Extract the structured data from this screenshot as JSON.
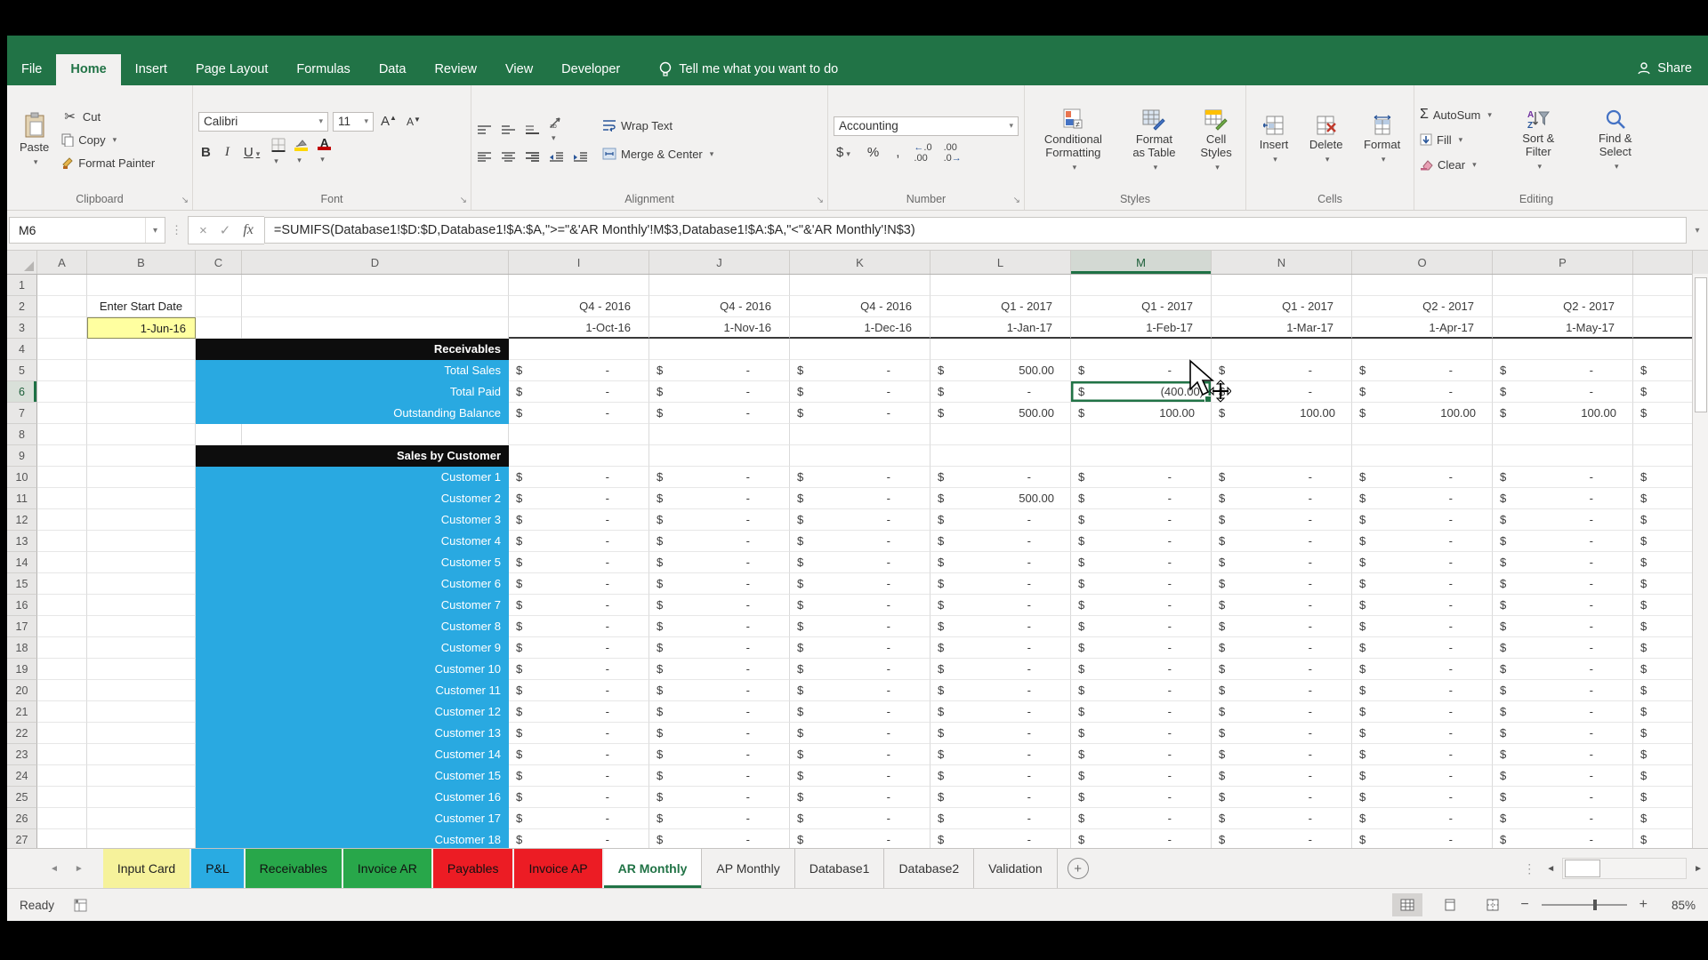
{
  "colors": {
    "accent": "#217346",
    "band_blue": "#29a9e1",
    "band_black": "#0d0d0d",
    "cell_yellow": "#ffffa0",
    "tab_yellow": "#f6f29b",
    "tab_blue": "#29abe2",
    "tab_green": "#28a74a",
    "tab_red": "#ec1c24"
  },
  "ribbon": {
    "tabs": [
      {
        "label": "File"
      },
      {
        "label": "Home",
        "active": true
      },
      {
        "label": "Insert"
      },
      {
        "label": "Page Layout"
      },
      {
        "label": "Formulas"
      },
      {
        "label": "Data"
      },
      {
        "label": "Review"
      },
      {
        "label": "View"
      },
      {
        "label": "Developer"
      }
    ],
    "tell_me": "Tell me what you want to do",
    "share_label": "Share",
    "clipboard": {
      "group": "Clipboard",
      "paste": "Paste",
      "cut": "Cut",
      "copy": "Copy",
      "format_painter": "Format Painter"
    },
    "font": {
      "group": "Font",
      "family": "Calibri",
      "size": "11"
    },
    "alignment": {
      "group": "Alignment",
      "wrap": "Wrap Text",
      "merge": "Merge & Center"
    },
    "number": {
      "group": "Number",
      "format": "Accounting"
    },
    "styles": {
      "group": "Styles",
      "conditional": "Conditional Formatting",
      "format_table": "Format as Table",
      "cell_styles": "Cell Styles"
    },
    "cells": {
      "group": "Cells",
      "insert": "Insert",
      "delete": "Delete",
      "format": "Format"
    },
    "editing": {
      "group": "Editing",
      "autosum": "AutoSum",
      "fill": "Fill",
      "clear": "Clear",
      "sort": "Sort & Filter",
      "find": "Find & Select"
    }
  },
  "formula_bar": {
    "name_box": "M6",
    "formula": "=SUMIFS(Database1!$D:$D,Database1!$A:$A,\">=\"&'AR Monthly'!M$3,Database1!$A:$A,\"<\"&'AR Monthly'!N$3)"
  },
  "sheet": {
    "columns": [
      "A",
      "B",
      "C",
      "D",
      "I",
      "J",
      "K",
      "L",
      "M",
      "N",
      "O",
      "P"
    ],
    "selected": {
      "cell": "M6",
      "column": "M",
      "row": 6
    },
    "first_row": 1,
    "last_row": 27,
    "start_date_label": "Enter Start Date",
    "start_date_value": "1-Jun-16",
    "quarters": [
      "Q4 - 2016",
      "Q4 - 2016",
      "Q4 - 2016",
      "Q1 - 2017",
      "Q1 - 2017",
      "Q1 - 2017",
      "Q2 - 2017",
      "Q2 - 2017"
    ],
    "dates": [
      "1-Oct-16",
      "1-Nov-16",
      "1-Dec-16",
      "1-Jan-17",
      "1-Feb-17",
      "1-Mar-17",
      "1-Apr-17",
      "1-May-17"
    ],
    "default_values": [
      "-",
      "-",
      "-",
      "-",
      "-",
      "-",
      "-",
      "-"
    ],
    "receivables": {
      "title": "Receivables",
      "rows": [
        {
          "label": "Total Sales",
          "values": [
            "-",
            "-",
            "-",
            "500.00",
            "-",
            "-",
            "-",
            "-"
          ]
        },
        {
          "label": "Total Paid",
          "values": [
            "-",
            "-",
            "-",
            "-",
            "(400.00)",
            "-",
            "-",
            "-"
          ]
        },
        {
          "label": "Outstanding Balance",
          "values": [
            "-",
            "-",
            "-",
            "500.00",
            "100.00",
            "100.00",
            "100.00",
            "100.00"
          ]
        }
      ]
    },
    "sales": {
      "title": "Sales by Customer",
      "customers": [
        {
          "label": "Customer 1"
        },
        {
          "label": "Customer 2",
          "values": [
            "-",
            "-",
            "-",
            "500.00",
            "-",
            "-",
            "-",
            "-"
          ]
        },
        {
          "label": "Customer 3"
        },
        {
          "label": "Customer 4"
        },
        {
          "label": "Customer 5"
        },
        {
          "label": "Customer 6"
        },
        {
          "label": "Customer 7"
        },
        {
          "label": "Customer 8"
        },
        {
          "label": "Customer 9"
        },
        {
          "label": "Customer 10"
        },
        {
          "label": "Customer 11"
        },
        {
          "label": "Customer 12"
        },
        {
          "label": "Customer 13"
        },
        {
          "label": "Customer 14"
        },
        {
          "label": "Customer 15"
        },
        {
          "label": "Customer 16"
        },
        {
          "label": "Customer 17"
        },
        {
          "label": "Customer 18"
        }
      ]
    }
  },
  "sheet_tabs": [
    {
      "label": "Input Card",
      "color": "#f6f29b",
      "text": "#222"
    },
    {
      "label": "P&L",
      "color": "#29abe2",
      "text": "#111"
    },
    {
      "label": "Receivables",
      "color": "#28a74a",
      "text": "#111"
    },
    {
      "label": "Invoice AR",
      "color": "#28a74a",
      "text": "#111"
    },
    {
      "label": "Payables",
      "color": "#ec1c24",
      "text": "#111"
    },
    {
      "label": "Invoice AP",
      "color": "#ec1c24",
      "text": "#111"
    },
    {
      "label": "AR Monthly",
      "active": true
    },
    {
      "label": "AP Monthly"
    },
    {
      "label": "Database1"
    },
    {
      "label": "Database2"
    },
    {
      "label": "Validation"
    }
  ],
  "status_bar": {
    "mode": "Ready",
    "zoom": "85%"
  }
}
